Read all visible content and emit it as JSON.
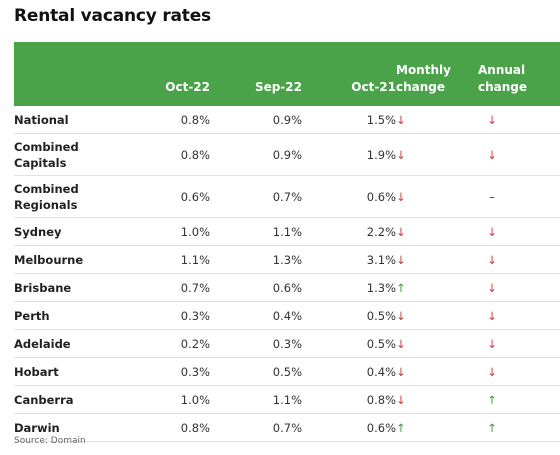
{
  "title": "Rental vacancy rates",
  "columns": {
    "oct22": "Oct-22",
    "sep22": "Sep-22",
    "oct21": "Oct-21",
    "monthly_l1": "Monthly",
    "monthly_l2": "change",
    "annual_l1": "Annual",
    "annual_l2": "change"
  },
  "rows": [
    {
      "name_l1": "National",
      "name_l2": "",
      "oct22": "0.8%",
      "sep22": "0.9%",
      "oct21": "1.5%",
      "monthly": "↓",
      "annual": "↓"
    },
    {
      "name_l1": "Combined",
      "name_l2": "Capitals",
      "oct22": "0.8%",
      "sep22": "0.9%",
      "oct21": "1.9%",
      "monthly": "↓",
      "annual": "↓"
    },
    {
      "name_l1": "Combined",
      "name_l2": "Regionals",
      "oct22": "0.6%",
      "sep22": "0.7%",
      "oct21": "0.6%",
      "monthly": "↓",
      "annual": "–"
    },
    {
      "name_l1": "Sydney",
      "name_l2": "",
      "oct22": "1.0%",
      "sep22": "1.1%",
      "oct21": "2.2%",
      "monthly": "↓",
      "annual": "↓"
    },
    {
      "name_l1": "Melbourne",
      "name_l2": "",
      "oct22": "1.1%",
      "sep22": "1.3%",
      "oct21": "3.1%",
      "monthly": "↓",
      "annual": "↓"
    },
    {
      "name_l1": "Brisbane",
      "name_l2": "",
      "oct22": "0.7%",
      "sep22": "0.6%",
      "oct21": "1.3%",
      "monthly": "↑",
      "annual": "↓"
    },
    {
      "name_l1": "Perth",
      "name_l2": "",
      "oct22": "0.3%",
      "sep22": "0.4%",
      "oct21": "0.5%",
      "monthly": "↓",
      "annual": "↓"
    },
    {
      "name_l1": "Adelaide",
      "name_l2": "",
      "oct22": "0.2%",
      "sep22": "0.3%",
      "oct21": "0.5%",
      "monthly": "↓",
      "annual": "↓"
    },
    {
      "name_l1": "Hobart",
      "name_l2": "",
      "oct22": "0.3%",
      "sep22": "0.5%",
      "oct21": "0.4%",
      "monthly": "↓",
      "annual": "↓"
    },
    {
      "name_l1": "Canberra",
      "name_l2": "",
      "oct22": "1.0%",
      "sep22": "1.1%",
      "oct21": "0.8%",
      "monthly": "↓",
      "annual": "↑"
    },
    {
      "name_l1": "Darwin",
      "name_l2": "",
      "oct22": "0.8%",
      "sep22": "0.7%",
      "oct21": "0.6%",
      "monthly": "↑",
      "annual": "↑"
    }
  ],
  "source": "Source: Domain",
  "colors": {
    "header_bg": "#4aa349",
    "down": "#d63b3b",
    "up": "#3e9b3e"
  }
}
